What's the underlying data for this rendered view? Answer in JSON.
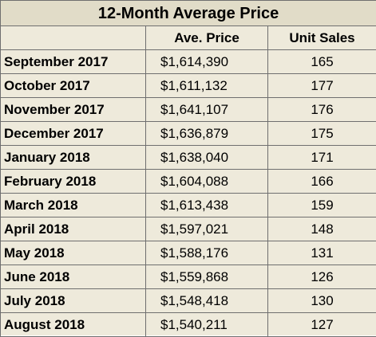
{
  "table": {
    "title": "12-Month Average Price",
    "headers": [
      "",
      "Ave. Price",
      "Unit Sales"
    ],
    "rows": [
      {
        "month": "September 2017",
        "price": "$1,614,390",
        "sales": "165"
      },
      {
        "month": "October 2017",
        "price": "$1,611,132",
        "sales": "177"
      },
      {
        "month": "November 2017",
        "price": "$1,641,107",
        "sales": "176"
      },
      {
        "month": "December 2017",
        "price": "$1,636,879",
        "sales": "175"
      },
      {
        "month": "January 2018",
        "price": "$1,638,040",
        "sales": "171"
      },
      {
        "month": "February 2018",
        "price": "$1,604,088",
        "sales": "166"
      },
      {
        "month": "March 2018",
        "price": "$1,613,438",
        "sales": "159"
      },
      {
        "month": "April 2018",
        "price": "$1,597,021",
        "sales": "148"
      },
      {
        "month": "May 2018",
        "price": "$1,588,176",
        "sales": "131"
      },
      {
        "month": "June 2018",
        "price": "$1,559,868",
        "sales": "126"
      },
      {
        "month": "July 2018",
        "price": "$1,548,418",
        "sales": "130"
      },
      {
        "month": "August 2018",
        "price": "$1,540,211",
        "sales": "127"
      }
    ]
  },
  "colors": {
    "background": "#eeeadb",
    "title_background": "#e1dcc8",
    "grid": "#6f6f6f"
  }
}
